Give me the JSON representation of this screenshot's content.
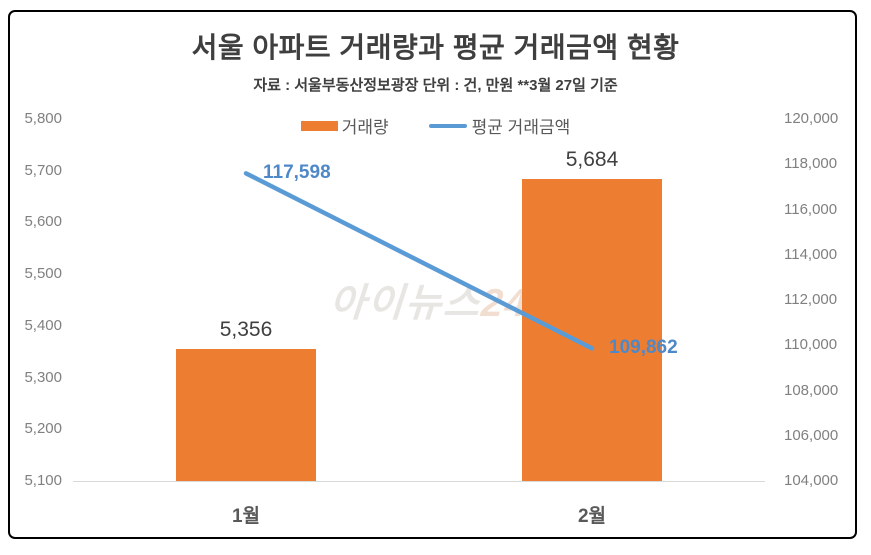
{
  "title": "서울 아파트  거래량과 평균 거래금액 현황",
  "subtitle": "자료 : 서울부동산정보광장 단위 : 건, 만원  **3월 27일 기준",
  "watermark": {
    "text_main": "아이뉴스",
    "text_suffix": "24"
  },
  "legend": [
    {
      "label": "거래량",
      "type": "bar",
      "color": "#ED7D31"
    },
    {
      "label": "평균 거래금액",
      "type": "line",
      "color": "#5B9BD5"
    }
  ],
  "colors": {
    "bar": "#ED7D31",
    "line": "#5B9BD5",
    "line_label": "#4E88C7",
    "bar_label": "#404040",
    "axis_text": "#808080",
    "category_text": "#595959",
    "title_text": "#3F3F3F",
    "baseline": "#D9D9D9",
    "frame_border": "#000000"
  },
  "chart_data": {
    "type": "bar",
    "subtype": "bar+line combo, dual axis",
    "categories": [
      "1월",
      "2월"
    ],
    "series": [
      {
        "name": "거래량",
        "type": "bar",
        "axis": "left",
        "color": "#ED7D31",
        "values": [
          5356,
          5684
        ]
      },
      {
        "name": "평균 거래금액",
        "type": "line",
        "axis": "right",
        "color": "#5B9BD5",
        "values": [
          117598,
          109862
        ]
      }
    ],
    "left_axis": {
      "min": 5100,
      "max": 5800,
      "step": 100
    },
    "right_axis": {
      "min": 104000,
      "max": 120000,
      "step": 2000
    },
    "grid": false,
    "legend_position": "top",
    "data_labels": true
  }
}
